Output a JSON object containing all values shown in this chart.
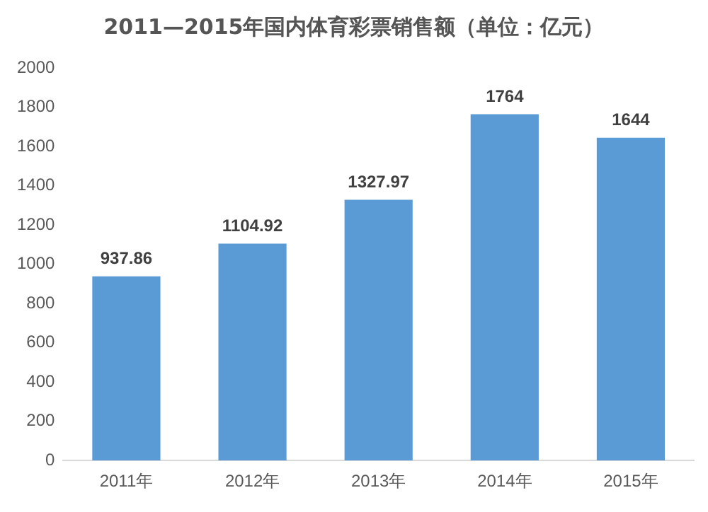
{
  "chart_data": {
    "type": "bar",
    "title": "2011—2015年国内体育彩票销售额（单位：亿元）",
    "categories": [
      "2011年",
      "2012年",
      "2013年",
      "2014年",
      "2015年"
    ],
    "values": [
      937.86,
      1104.92,
      1327.97,
      1764,
      1644
    ],
    "color": "#5b9bd5",
    "ylim": [
      0,
      2000
    ],
    "yticks": [
      0,
      200,
      400,
      600,
      800,
      1000,
      1200,
      1400,
      1600,
      1800,
      2000
    ],
    "grid": false,
    "legend": false,
    "data_labels": true
  }
}
